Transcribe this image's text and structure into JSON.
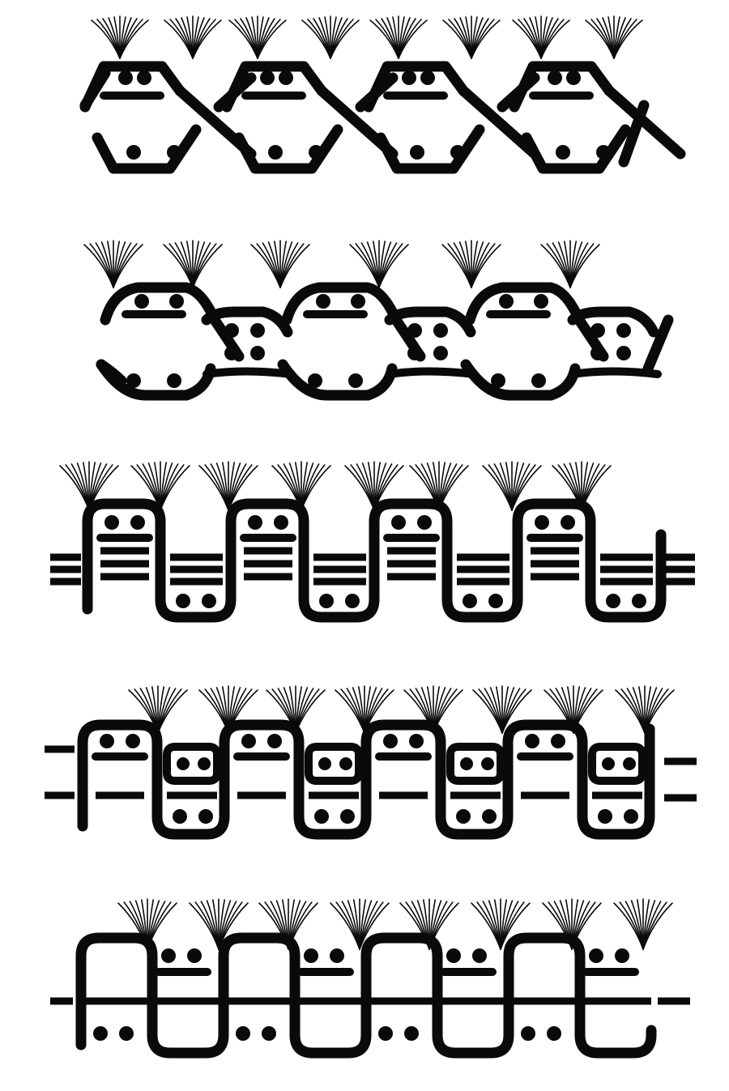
{
  "ink_color": "#0a0a0a",
  "paper_color": "#ffffff",
  "bands": [
    {
      "id": "band-1",
      "motif": "interlaced-hexagon-chain",
      "units": 4,
      "tufts": 8
    },
    {
      "id": "band-2",
      "motif": "alternating-large-and-small-hexagons",
      "units": 6,
      "tufts": 6
    },
    {
      "id": "band-3",
      "motif": "meander-over-triple-bars",
      "units": 4,
      "tufts": 8
    },
    {
      "id": "band-4",
      "motif": "meander-with-inner-boxes-and-double-bars",
      "units": 4,
      "tufts": 8
    },
    {
      "id": "band-5",
      "motif": "meander-over-single-bar",
      "units": 4,
      "tufts": 8
    }
  ]
}
